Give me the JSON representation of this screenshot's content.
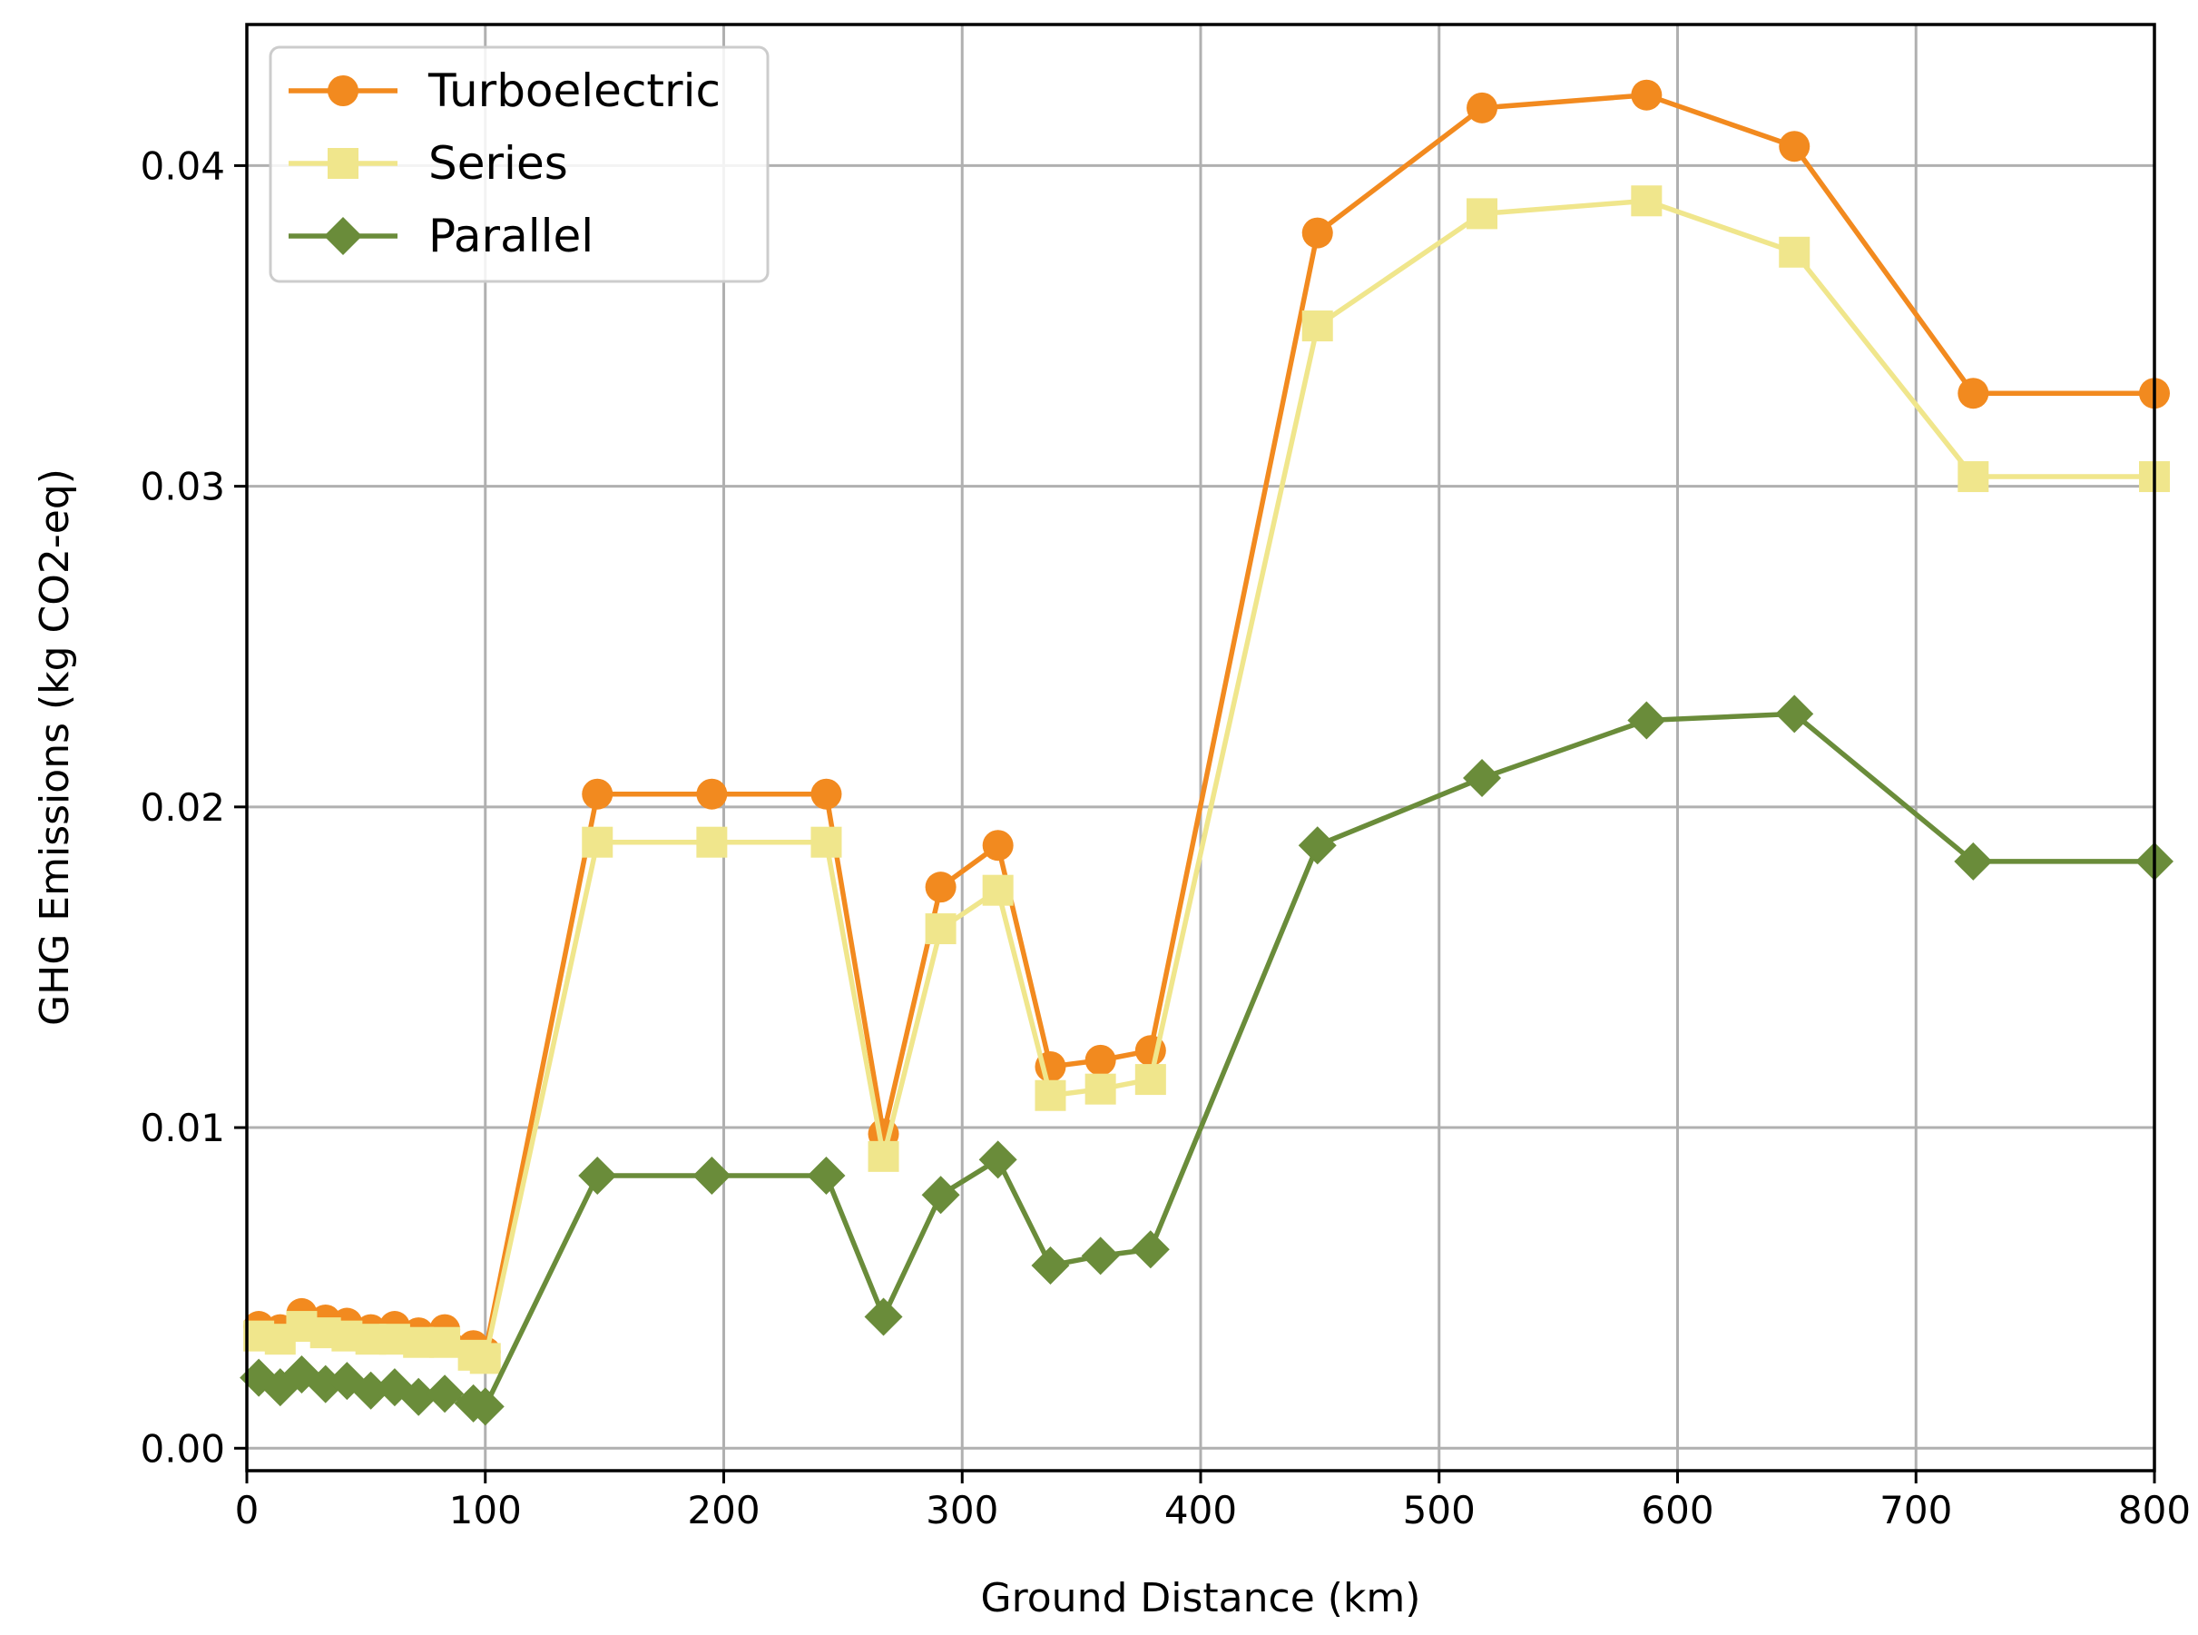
{
  "chart_data": {
    "type": "line",
    "xlabel": "Ground Distance (km)",
    "ylabel": "GHG Emissions (kg CO2-eq)",
    "xlim": [
      0,
      800
    ],
    "ylim": [
      -0.0007,
      0.0444
    ],
    "xticks": [
      0,
      100,
      200,
      300,
      400,
      500,
      600,
      700,
      800
    ],
    "xtick_labels": [
      "0",
      "100",
      "200",
      "300",
      "400",
      "500",
      "600",
      "700",
      "800"
    ],
    "yticks": [
      0.0,
      0.01,
      0.02,
      0.03,
      0.04
    ],
    "ytick_labels": [
      "0.00",
      "0.01",
      "0.02",
      "0.03",
      "0.04"
    ],
    "grid": true,
    "legend_position": "top-left",
    "series": [
      {
        "name": "Turboelectric",
        "color": "#f28a1f",
        "marker": "circle",
        "x": [
          5,
          14,
          23,
          33,
          42,
          52,
          62,
          72,
          83,
          95,
          100,
          147,
          195,
          243,
          267,
          291,
          315,
          337,
          358,
          379,
          449,
          518,
          587,
          649,
          724,
          800
        ],
        "y": [
          0.0038,
          0.0037,
          0.0042,
          0.004,
          0.0039,
          0.0037,
          0.0038,
          0.0036,
          0.0037,
          0.0032,
          0.003,
          0.0204,
          0.0204,
          0.0204,
          0.0098,
          0.0175,
          0.0188,
          0.0119,
          0.0121,
          0.0124,
          0.0379,
          0.0418,
          0.0422,
          0.0406,
          0.0329,
          0.0329
        ]
      },
      {
        "name": "Series",
        "color": "#f0e68c",
        "marker": "square",
        "x": [
          5,
          14,
          23,
          33,
          42,
          52,
          62,
          72,
          83,
          95,
          100,
          147,
          195,
          243,
          267,
          291,
          315,
          337,
          358,
          379,
          449,
          518,
          587,
          649,
          724,
          800
        ],
        "y": [
          0.0035,
          0.0034,
          0.0038,
          0.0036,
          0.0035,
          0.0034,
          0.0034,
          0.0033,
          0.0033,
          0.0029,
          0.0028,
          0.0189,
          0.0189,
          0.0189,
          0.0091,
          0.0162,
          0.0174,
          0.011,
          0.0112,
          0.0115,
          0.035,
          0.0385,
          0.0389,
          0.0373,
          0.0303,
          0.0303
        ]
      },
      {
        "name": "Parallel",
        "color": "#6a8c3a",
        "marker": "diamond",
        "x": [
          5,
          14,
          23,
          33,
          42,
          52,
          62,
          72,
          83,
          95,
          100,
          147,
          195,
          243,
          267,
          291,
          315,
          337,
          358,
          379,
          449,
          518,
          587,
          649,
          724,
          800
        ],
        "y": [
          0.0022,
          0.0019,
          0.0023,
          0.002,
          0.0021,
          0.0018,
          0.0019,
          0.0016,
          0.0017,
          0.0014,
          0.0013,
          0.0085,
          0.0085,
          0.0085,
          0.0041,
          0.0079,
          0.009,
          0.0057,
          0.006,
          0.0062,
          0.0188,
          0.0209,
          0.0227,
          0.0229,
          0.0183,
          0.0183
        ]
      }
    ]
  }
}
